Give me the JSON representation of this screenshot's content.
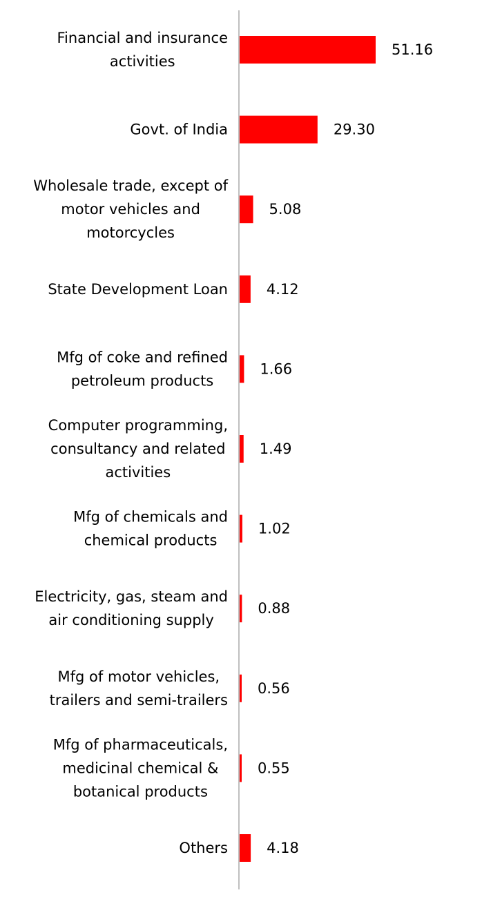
{
  "chart_data": {
    "type": "bar",
    "orientation": "horizontal",
    "categories": [
      [
        "Financial and insurance",
        "activities"
      ],
      [
        "Govt. of India"
      ],
      [
        "Wholesale trade, except of",
        "motor vehicles and",
        "motorcycles"
      ],
      [
        "State Development Loan"
      ],
      [
        "Mfg of coke and refined",
        "petroleum products"
      ],
      [
        "Computer programming,",
        "consultancy and related",
        "activities"
      ],
      [
        "Mfg of chemicals and",
        "chemical products"
      ],
      [
        "Electricity, gas, steam and",
        "air conditioning supply"
      ],
      [
        "Mfg of motor vehicles,",
        "trailers and semi-trailers"
      ],
      [
        "Mfg of pharmaceuticals,",
        "medicinal chemical &",
        "botanical products"
      ],
      [
        "Others"
      ]
    ],
    "values": [
      51.16,
      29.3,
      5.08,
      4.12,
      1.66,
      1.49,
      1.02,
      0.88,
      0.56,
      0.55,
      4.18
    ],
    "value_labels": [
      "51.16",
      "29.30",
      "5.08",
      "4.12",
      "1.66",
      "1.49",
      "1.02",
      "0.88",
      "0.56",
      "0.55",
      "4.18"
    ],
    "xlim": [
      0,
      51.16
    ],
    "grid": false,
    "bar_color": "#ff0000",
    "axis_color": "#bfbfbf"
  }
}
